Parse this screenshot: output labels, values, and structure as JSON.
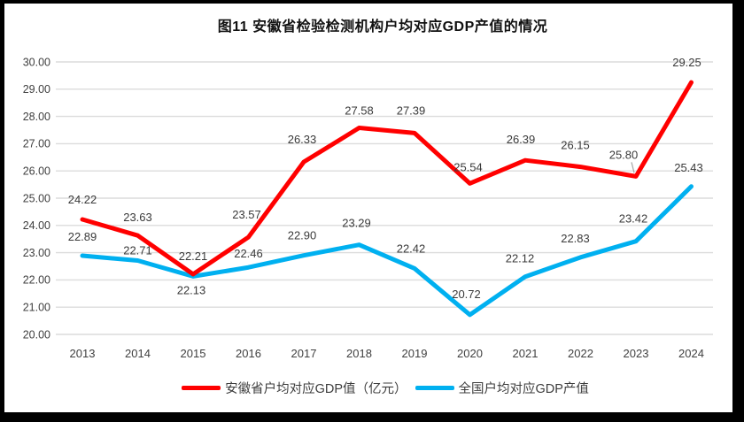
{
  "title": "图11 安徽省检验检测机构户均对应GDP产值的情况",
  "chart_data": {
    "type": "line",
    "title": "图11 安徽省检验检测机构户均对应GDP产值的情况",
    "categories": [
      "2013",
      "2014",
      "2015",
      "2016",
      "2017",
      "2018",
      "2019",
      "2020",
      "2021",
      "2022",
      "2023",
      "2024"
    ],
    "series": [
      {
        "name": "安徽省户均对应GDP值（亿元）",
        "color": "#FF0000",
        "values": [
          24.22,
          23.63,
          22.21,
          23.57,
          26.33,
          27.58,
          27.39,
          25.54,
          26.39,
          26.15,
          25.8,
          29.25
        ]
      },
      {
        "name": "全国户均对应GDP产值",
        "color": "#00B0F0",
        "values": [
          22.89,
          22.71,
          22.13,
          22.46,
          22.9,
          23.29,
          22.42,
          20.72,
          22.12,
          22.83,
          23.42,
          25.43
        ]
      }
    ],
    "ylim": [
      20,
      30
    ],
    "y_tick_step": 1,
    "y_ticks": [
      "20.00",
      "21.00",
      "22.00",
      "23.00",
      "24.00",
      "25.00",
      "26.00",
      "27.00",
      "28.00",
      "29.00",
      "30.00"
    ],
    "grid": true,
    "gridline_color": "#DCDCDC",
    "axis_text_color": "#404040",
    "data_label_color": "#3a3a3a",
    "data_labels_shown": true,
    "label_callout": {
      "series_index": 0,
      "category": "2023",
      "leader_color": "#A6A6A6"
    },
    "legend_position": "bottom",
    "frame_border_color": "#000000",
    "background_color": "#FFFFFF"
  }
}
